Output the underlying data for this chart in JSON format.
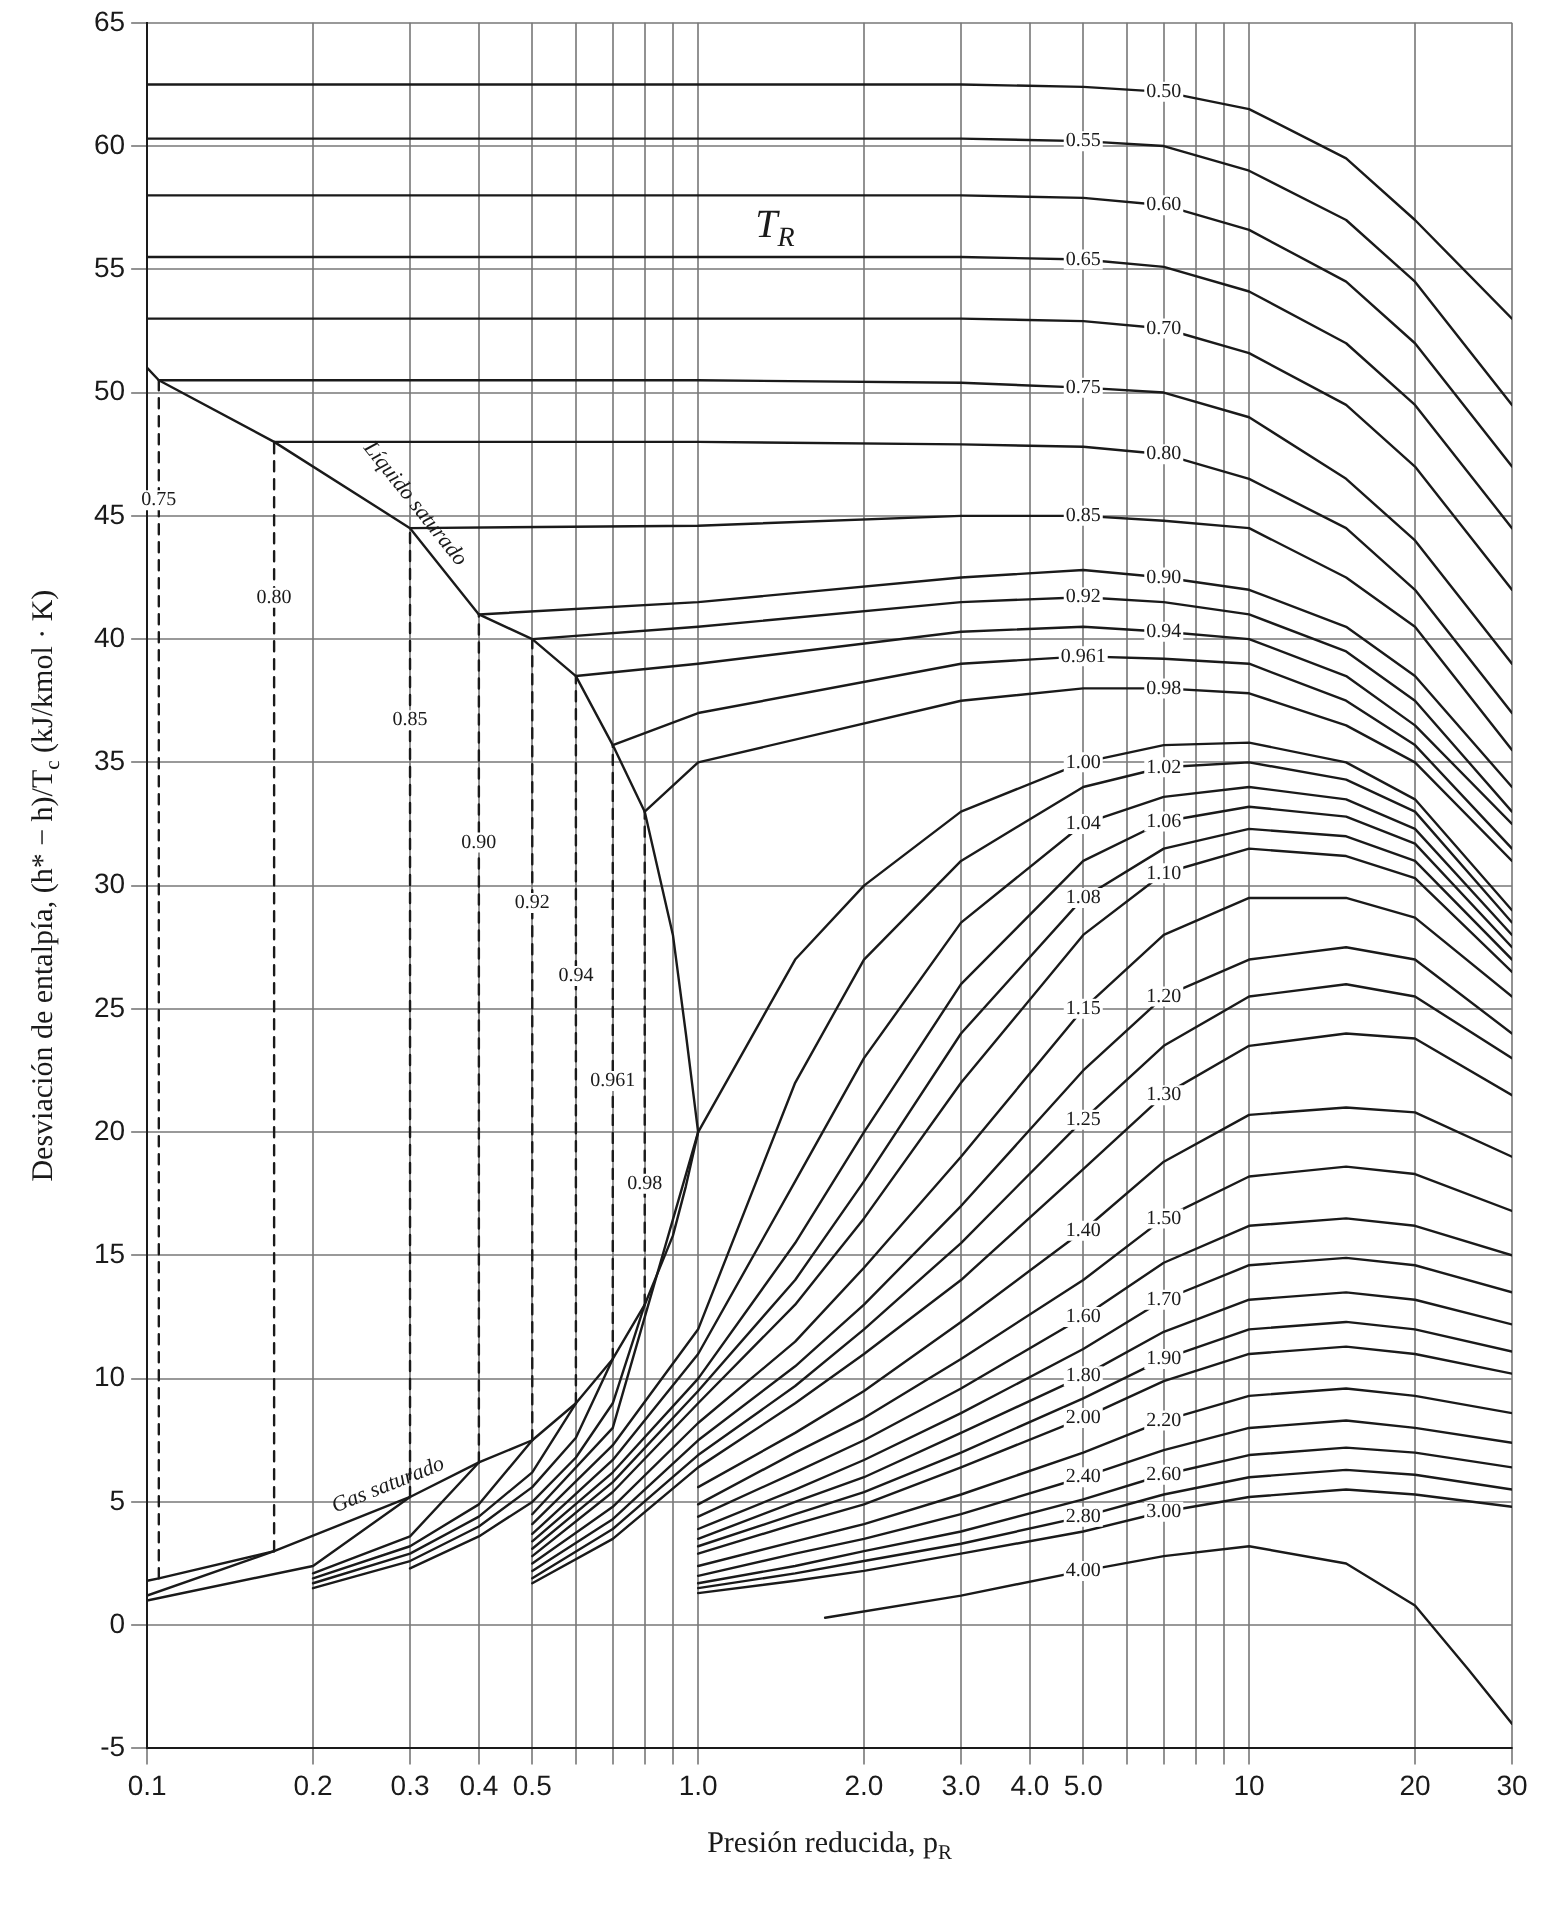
{
  "chart_data": {
    "type": "line",
    "xlabel": "Presión reducida, p$_{R}$",
    "ylabel": "Desviación de entalpía, (h* − h)/T$_{c}$ (kJ/kmol · K)",
    "annotations": [
      "T$_{R}$",
      {
        "text": "Líquido saturado",
        "x": 0.3,
        "y": 44.5
      },
      {
        "text": "Gas saturado",
        "x": 0.3,
        "y": 5.2
      }
    ],
    "xlim": [
      0.1,
      30
    ],
    "xticks": [
      0.1,
      0.2,
      0.3,
      0.4,
      0.5,
      {
        "value": 0.6,
        "label": null
      },
      {
        "value": 0.7,
        "label": null
      },
      {
        "value": 0.8,
        "label": null
      },
      {
        "value": 0.9,
        "label": null
      },
      {
        "value": 1,
        "label": "1.0"
      },
      {
        "value": 2,
        "label": "2.0"
      },
      {
        "value": 3,
        "label": "3.0"
      },
      {
        "value": 4,
        "label": "4.0"
      },
      {
        "value": 5,
        "label": "5.0"
      },
      {
        "value": 6,
        "label": null
      },
      {
        "value": 7,
        "label": null
      },
      {
        "value": 8,
        "label": null
      },
      {
        "value": 9,
        "label": null
      },
      10,
      20,
      30
    ],
    "ylim": [
      -5,
      65
    ],
    "yticks": [
      -5,
      0,
      5,
      10,
      15,
      20,
      25,
      30,
      35,
      40,
      45,
      50,
      55,
      60,
      65
    ],
    "log": "x",
    "grid": true,
    "legend": false,
    "marker": "none",
    "line_style": "solid",
    "series": [
      {
        "color": "#1a1a1a",
        "x": [
          0.1,
          0.105,
          0.17,
          0.3,
          0.4,
          0.5,
          0.6,
          0.7,
          0.8,
          0.9,
          0.95,
          1,
          0.95,
          0.9,
          0.8,
          0.7,
          0.6,
          0.5,
          0.4,
          0.3,
          0.17,
          0.105,
          0.1
        ],
        "values": [
          51,
          50.5,
          48,
          44.5,
          41,
          40,
          38.5,
          35.7,
          33,
          28,
          24,
          20,
          17.8,
          15.8,
          13,
          10.8,
          9,
          7.5,
          6.6,
          5.2,
          3,
          1.9,
          1.8
        ]
      },
      {
        "name": "0.50",
        "color": "#1a1a1a",
        "x": [
          0.1,
          1,
          3,
          5,
          7,
          10,
          15,
          20,
          30
        ],
        "values": [
          62.5,
          62.5,
          62.5,
          62.4,
          62.2,
          61.5,
          59.5,
          57,
          53
        ]
      },
      {
        "name": "0.55",
        "color": "#1a1a1a",
        "x": [
          0.1,
          1,
          3,
          5,
          7,
          10,
          15,
          20,
          30
        ],
        "values": [
          60.3,
          60.3,
          60.3,
          60.2,
          60,
          59,
          57,
          54.5,
          49.5
        ]
      },
      {
        "name": "0.60",
        "color": "#1a1a1a",
        "x": [
          0.1,
          1,
          3,
          5,
          7,
          10,
          15,
          20,
          30
        ],
        "values": [
          58,
          58,
          58,
          57.9,
          57.6,
          56.6,
          54.5,
          52,
          47
        ]
      },
      {
        "name": "0.65",
        "color": "#1a1a1a",
        "x": [
          0.1,
          1,
          3,
          5,
          7,
          10,
          15,
          20,
          30
        ],
        "values": [
          55.5,
          55.5,
          55.5,
          55.4,
          55.1,
          54.1,
          52,
          49.5,
          44.5
        ]
      },
      {
        "name": "0.70",
        "color": "#1a1a1a",
        "x": [
          0.1,
          1,
          3,
          5,
          7,
          10,
          15,
          20,
          30
        ],
        "values": [
          53,
          53,
          53,
          52.9,
          52.6,
          51.6,
          49.5,
          47,
          42
        ]
      },
      {
        "name": "0.75",
        "color": "#1a1a1a",
        "x": [
          0.105,
          0.105,
          1,
          3,
          5,
          7,
          10,
          15,
          20,
          30
        ],
        "values": [
          1.9,
          50.5,
          50.5,
          50.4,
          50.2,
          50,
          49,
          46.5,
          44,
          39
        ]
      },
      {
        "name": "0.80",
        "color": "#1a1a1a",
        "x": [
          0.1,
          0.17,
          0.17,
          1,
          3,
          5,
          7,
          10,
          15,
          20,
          30
        ],
        "values": [
          1.2,
          3,
          48,
          48,
          47.9,
          47.8,
          47.5,
          46.5,
          44.5,
          42,
          37
        ]
      },
      {
        "name": "0.85",
        "color": "#1a1a1a",
        "x": [
          0.1,
          0.2,
          0.3,
          0.3,
          1,
          3,
          5,
          7,
          10,
          15,
          20,
          30
        ],
        "values": [
          1,
          2.4,
          5.2,
          44.5,
          44.6,
          45,
          45,
          44.8,
          44.5,
          42.5,
          40.5,
          35.5
        ]
      },
      {
        "name": "0.90",
        "color": "#1a1a1a",
        "x": [
          0.2,
          0.3,
          0.4,
          0.4,
          1,
          3,
          5,
          7,
          10,
          15,
          20,
          30
        ],
        "values": [
          2.1,
          3.6,
          6.6,
          41,
          41.5,
          42.5,
          42.8,
          42.5,
          42,
          40.5,
          38.5,
          34
        ]
      },
      {
        "name": "0.92",
        "color": "#1a1a1a",
        "x": [
          0.2,
          0.3,
          0.4,
          0.5,
          0.5,
          1,
          3,
          5,
          7,
          10,
          15,
          20,
          30
        ],
        "values": [
          1.9,
          3.2,
          4.9,
          7.5,
          40,
          40.5,
          41.5,
          41.7,
          41.5,
          41,
          39.5,
          37.5,
          33
        ]
      },
      {
        "name": "0.94",
        "color": "#1a1a1a",
        "x": [
          0.2,
          0.3,
          0.4,
          0.5,
          0.6,
          0.6,
          1,
          3,
          5,
          7,
          10,
          15,
          20,
          30
        ],
        "values": [
          1.7,
          2.9,
          4.4,
          6.2,
          9,
          38.5,
          39,
          40.3,
          40.5,
          40.3,
          40,
          38.5,
          36.5,
          32.5
        ]
      },
      {
        "name": "0.961",
        "color": "#1a1a1a",
        "x": [
          0.2,
          0.3,
          0.4,
          0.5,
          0.6,
          0.7,
          0.7,
          1,
          3,
          5,
          7,
          10,
          15,
          20,
          30
        ],
        "values": [
          1.5,
          2.6,
          4,
          5.6,
          7.6,
          10.8,
          35.7,
          37,
          39,
          39.3,
          39.2,
          39,
          37.5,
          35.7,
          31.5
        ]
      },
      {
        "name": "0.98",
        "color": "#1a1a1a",
        "x": [
          0.3,
          0.4,
          0.5,
          0.6,
          0.7,
          0.8,
          0.8,
          1,
          3,
          5,
          7,
          10,
          15,
          20,
          30
        ],
        "values": [
          2.3,
          3.6,
          5,
          6.8,
          9,
          13,
          33,
          35,
          37.5,
          38,
          38,
          37.8,
          36.5,
          35,
          31
        ]
      },
      {
        "name": "1.00",
        "color": "#1a1a1a",
        "x": [
          0.5,
          0.7,
          1,
          1.5,
          2,
          3,
          5,
          7,
          10,
          15,
          20,
          30
        ],
        "values": [
          4.5,
          8,
          20,
          27,
          30,
          33,
          35,
          35.7,
          35.8,
          35,
          33.5,
          29
        ]
      },
      {
        "name": "1.02",
        "color": "#1a1a1a",
        "x": [
          0.5,
          0.7,
          1,
          1.5,
          2,
          3,
          5,
          7,
          10,
          15,
          20,
          30
        ],
        "values": [
          4.1,
          7.3,
          12,
          22,
          27,
          31,
          34,
          34.8,
          35,
          34.3,
          33,
          28.5
        ]
      },
      {
        "name": "1.04",
        "color": "#1a1a1a",
        "x": [
          0.5,
          0.7,
          1,
          1.5,
          2,
          3,
          5,
          7,
          10,
          15,
          20,
          30
        ],
        "values": [
          3.7,
          6.7,
          11,
          18,
          23,
          28.5,
          32.5,
          33.6,
          34,
          33.5,
          32.3,
          28
        ]
      },
      {
        "name": "1.06",
        "color": "#1a1a1a",
        "x": [
          0.5,
          0.7,
          1,
          1.5,
          2,
          3,
          5,
          7,
          10,
          15,
          20,
          30
        ],
        "values": [
          3.4,
          6.2,
          10,
          15.5,
          20,
          26,
          31,
          32.6,
          33.2,
          32.8,
          31.7,
          27.5
        ]
      },
      {
        "name": "1.08",
        "color": "#1a1a1a",
        "x": [
          0.5,
          0.7,
          1,
          1.5,
          2,
          3,
          5,
          7,
          10,
          15,
          20,
          30
        ],
        "values": [
          3.1,
          5.8,
          9.5,
          14,
          18,
          24,
          29.5,
          31.5,
          32.3,
          32,
          31,
          27
        ]
      },
      {
        "name": "1.10",
        "color": "#1a1a1a",
        "x": [
          0.5,
          0.7,
          1,
          1.5,
          2,
          3,
          5,
          7,
          10,
          15,
          20,
          30
        ],
        "values": [
          2.8,
          5.4,
          9,
          13,
          16.5,
          22,
          28,
          30.5,
          31.5,
          31.2,
          30.3,
          26.5
        ]
      },
      {
        "name": "1.15",
        "color": "#1a1a1a",
        "x": [
          0.5,
          0.7,
          1,
          1.5,
          2,
          3,
          5,
          7,
          10,
          15,
          20,
          30
        ],
        "values": [
          2.5,
          4.8,
          8.2,
          11.5,
          14.5,
          19,
          25,
          28,
          29.5,
          29.5,
          28.7,
          25.5
        ]
      },
      {
        "name": "1.20",
        "color": "#1a1a1a",
        "x": [
          0.5,
          0.7,
          1,
          1.5,
          2,
          3,
          5,
          7,
          10,
          15,
          20,
          30
        ],
        "values": [
          2.2,
          4.3,
          7.5,
          10.5,
          13,
          17,
          22.5,
          25.5,
          27,
          27.5,
          27,
          24
        ]
      },
      {
        "name": "1.25",
        "color": "#1a1a1a",
        "x": [
          0.5,
          0.7,
          1,
          1.5,
          2,
          3,
          5,
          7,
          10,
          15,
          20,
          30
        ],
        "values": [
          1.9,
          3.9,
          6.9,
          9.7,
          12,
          15.5,
          20.5,
          23.5,
          25.5,
          26,
          25.5,
          23
        ]
      },
      {
        "name": "1.30",
        "color": "#1a1a1a",
        "x": [
          0.5,
          0.7,
          1,
          1.5,
          2,
          3,
          5,
          7,
          10,
          15,
          20,
          30
        ],
        "values": [
          1.7,
          3.5,
          6.4,
          9,
          11,
          14,
          18.5,
          21.5,
          23.5,
          24,
          23.8,
          21.5
        ]
      },
      {
        "name": "1.40",
        "color": "#1a1a1a",
        "x": [
          1,
          1.5,
          2,
          3,
          5,
          7,
          10,
          15,
          20,
          30
        ],
        "values": [
          5.6,
          7.8,
          9.5,
          12.3,
          16,
          18.8,
          20.7,
          21,
          20.8,
          19
        ]
      },
      {
        "name": "1.50",
        "color": "#1a1a1a",
        "x": [
          1,
          1.5,
          2,
          3,
          5,
          7,
          10,
          15,
          20,
          30
        ],
        "values": [
          4.9,
          7,
          8.4,
          10.8,
          14,
          16.5,
          18.2,
          18.6,
          18.3,
          16.8
        ]
      },
      {
        "name": "1.60",
        "color": "#1a1a1a",
        "x": [
          1,
          1.5,
          2,
          3,
          5,
          7,
          10,
          15,
          20,
          30
        ],
        "values": [
          4.4,
          6.2,
          7.5,
          9.6,
          12.5,
          14.7,
          16.2,
          16.5,
          16.2,
          15
        ]
      },
      {
        "name": "1.70",
        "color": "#1a1a1a",
        "x": [
          1,
          1.5,
          2,
          3,
          5,
          7,
          10,
          15,
          20,
          30
        ],
        "values": [
          3.9,
          5.5,
          6.7,
          8.6,
          11.2,
          13.2,
          14.6,
          14.9,
          14.6,
          13.5
        ]
      },
      {
        "name": "1.80",
        "color": "#1a1a1a",
        "x": [
          1,
          1.5,
          2,
          3,
          5,
          7,
          10,
          15,
          20,
          30
        ],
        "values": [
          3.5,
          5,
          6,
          7.8,
          10.1,
          11.9,
          13.2,
          13.5,
          13.2,
          12.2
        ]
      },
      {
        "name": "1.90",
        "color": "#1a1a1a",
        "x": [
          1,
          1.5,
          2,
          3,
          5,
          7,
          10,
          15,
          20,
          30
        ],
        "values": [
          3.2,
          4.5,
          5.4,
          7,
          9.2,
          10.8,
          12,
          12.3,
          12,
          11.1
        ]
      },
      {
        "name": "2.00",
        "color": "#1a1a1a",
        "x": [
          1,
          1.5,
          2,
          3,
          5,
          7,
          10,
          15,
          20,
          30
        ],
        "values": [
          2.9,
          4.1,
          4.9,
          6.4,
          8.4,
          9.9,
          11,
          11.3,
          11,
          10.2
        ]
      },
      {
        "name": "2.20",
        "color": "#1a1a1a",
        "x": [
          1,
          1.5,
          2,
          3,
          5,
          7,
          10,
          15,
          20,
          30
        ],
        "values": [
          2.4,
          3.4,
          4.1,
          5.3,
          7,
          8.3,
          9.3,
          9.6,
          9.3,
          8.6
        ]
      },
      {
        "name": "2.40",
        "color": "#1a1a1a",
        "x": [
          1,
          1.5,
          2,
          3,
          5,
          7,
          10,
          15,
          20,
          30
        ],
        "values": [
          2,
          2.9,
          3.5,
          4.5,
          6,
          7.1,
          8,
          8.3,
          8,
          7.4
        ]
      },
      {
        "name": "2.60",
        "color": "#1a1a1a",
        "x": [
          1,
          1.5,
          2,
          3,
          5,
          7,
          10,
          15,
          20,
          30
        ],
        "values": [
          1.7,
          2.4,
          3,
          3.8,
          5.1,
          6.1,
          6.9,
          7.2,
          7,
          6.4
        ]
      },
      {
        "name": "2.80",
        "color": "#1a1a1a",
        "x": [
          1,
          1.5,
          2,
          3,
          5,
          7,
          10,
          15,
          20,
          30
        ],
        "values": [
          1.5,
          2.1,
          2.6,
          3.3,
          4.4,
          5.3,
          6,
          6.3,
          6.1,
          5.5
        ]
      },
      {
        "name": "3.00",
        "color": "#1a1a1a",
        "x": [
          1,
          1.5,
          2,
          3,
          5,
          7,
          10,
          15,
          20,
          30
        ],
        "values": [
          1.3,
          1.8,
          2.2,
          2.9,
          3.8,
          4.6,
          5.2,
          5.5,
          5.3,
          4.8
        ]
      },
      {
        "name": "4.00",
        "color": "#1a1a1a",
        "x": [
          1.7,
          3,
          5,
          7,
          10,
          15,
          20,
          25,
          30
        ],
        "values": [
          0.3,
          1.2,
          2.2,
          2.8,
          3.2,
          2.5,
          0.8,
          -1.8,
          -4
        ]
      }
    ]
  }
}
